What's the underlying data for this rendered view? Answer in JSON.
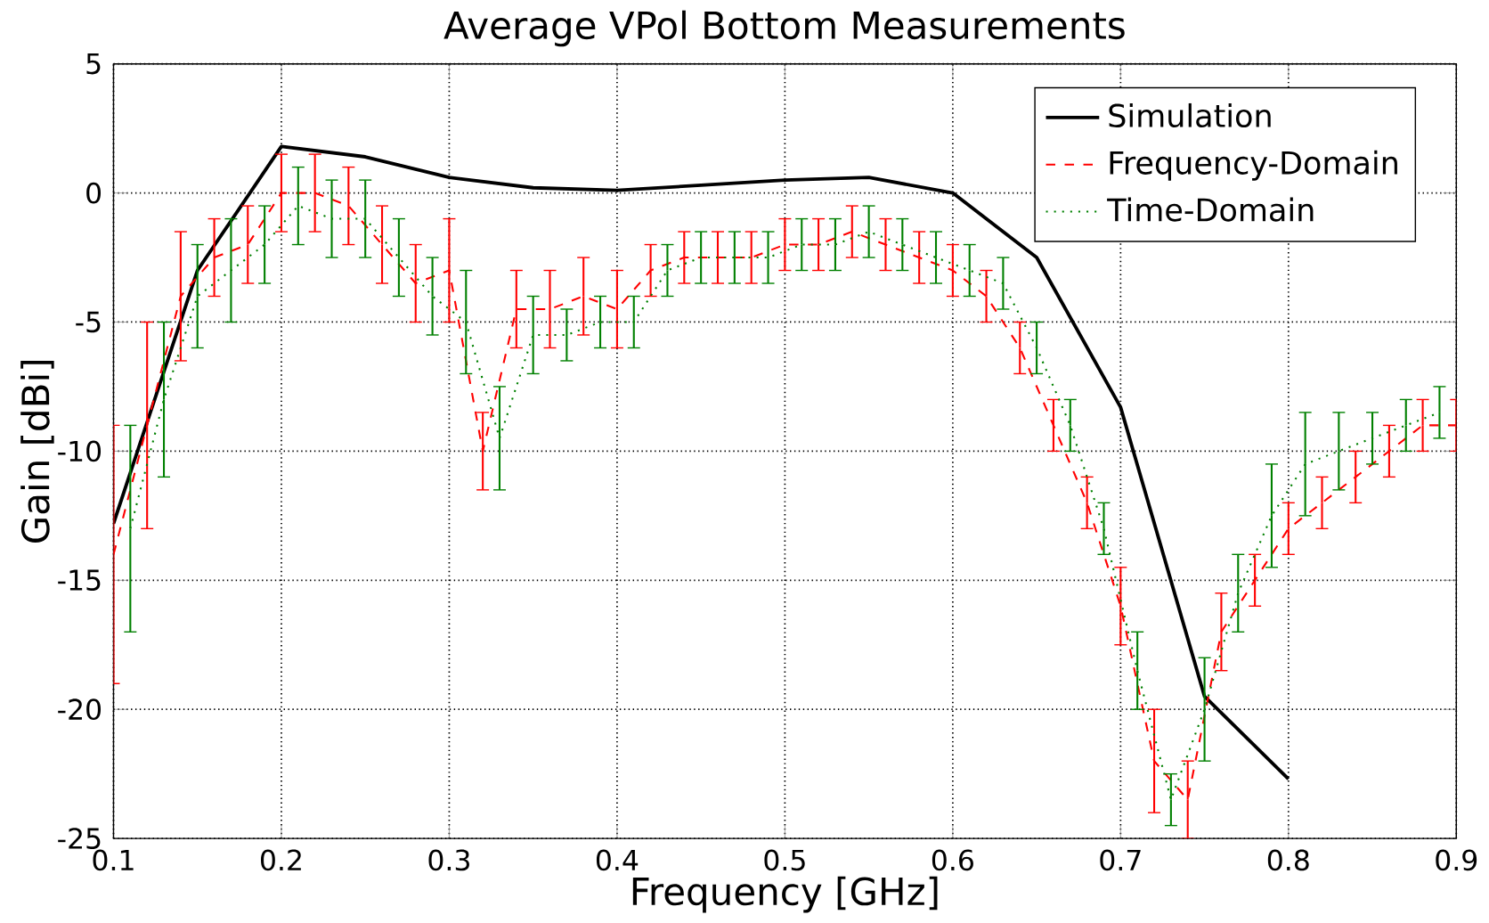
{
  "chart_data": {
    "type": "line",
    "title": "Average VPol Bottom Measurements",
    "xlabel": "Frequency [GHz]",
    "ylabel": "Gain [dBi]",
    "xlim": [
      0.1,
      0.9
    ],
    "ylim": [
      -25,
      5
    ],
    "xticks": [
      0.1,
      0.2,
      0.3,
      0.4,
      0.5,
      0.6,
      0.7,
      0.8,
      0.9
    ],
    "yticks": [
      -25,
      -20,
      -15,
      -10,
      -5,
      0,
      5
    ],
    "grid": true,
    "legend": "top right",
    "marker": "none",
    "series": [
      {
        "name": "Simulation",
        "color": "#000000",
        "line_style": "solid",
        "x": [
          0.1,
          0.15,
          0.2,
          0.25,
          0.3,
          0.35,
          0.4,
          0.45,
          0.5,
          0.55,
          0.6,
          0.65,
          0.7,
          0.75,
          0.8
        ],
        "values": [
          -12.8,
          -3,
          1.8,
          1.4,
          0.6,
          0.2,
          0.1,
          0.3,
          0.5,
          0.6,
          0,
          -2.5,
          -8.3,
          -19.5,
          -22.7
        ]
      },
      {
        "name": "Frequency-Domain",
        "color": "#ff0000",
        "line_style": "dashed",
        "x": [
          0.1,
          0.12,
          0.14,
          0.16,
          0.18,
          0.2,
          0.22,
          0.24,
          0.26,
          0.28,
          0.3,
          0.32,
          0.34,
          0.36,
          0.38,
          0.4,
          0.42,
          0.44,
          0.46,
          0.48,
          0.5,
          0.52,
          0.54,
          0.56,
          0.58,
          0.6,
          0.62,
          0.64,
          0.66,
          0.68,
          0.7,
          0.72,
          0.74,
          0.76,
          0.78,
          0.8,
          0.82,
          0.84,
          0.86,
          0.88,
          0.9
        ],
        "values": [
          -14,
          -9,
          -4,
          -2.5,
          -2,
          0,
          0,
          -0.5,
          -2,
          -3.5,
          -3,
          -10,
          -4.5,
          -4.5,
          -4,
          -4.5,
          -3,
          -2.5,
          -2.5,
          -2.5,
          -2,
          -2,
          -1.5,
          -2,
          -2.5,
          -3,
          -4,
          -6,
          -9,
          -12,
          -16,
          -22,
          -23.5,
          -17,
          -15,
          -13,
          -12,
          -11,
          -10,
          -9,
          -9
        ],
        "errors": [
          5,
          4,
          2.5,
          1.5,
          1.5,
          1.5,
          1.5,
          1.5,
          1.5,
          1.5,
          2,
          1.5,
          1.5,
          1.5,
          1.5,
          1.5,
          1,
          1,
          1,
          1,
          1,
          1,
          1,
          1,
          1,
          1,
          1,
          1,
          1,
          1,
          1.5,
          2,
          1.5,
          1.5,
          1,
          1,
          1,
          1,
          1,
          1,
          1
        ]
      },
      {
        "name": "Time-Domain",
        "color": "#008000",
        "line_style": "dotted",
        "x": [
          0.11,
          0.13,
          0.15,
          0.17,
          0.19,
          0.21,
          0.23,
          0.25,
          0.27,
          0.29,
          0.31,
          0.33,
          0.35,
          0.37,
          0.39,
          0.41,
          0.43,
          0.45,
          0.47,
          0.49,
          0.51,
          0.53,
          0.55,
          0.57,
          0.59,
          0.61,
          0.63,
          0.65,
          0.67,
          0.69,
          0.71,
          0.73,
          0.75,
          0.77,
          0.79,
          0.81,
          0.83,
          0.85,
          0.87,
          0.89
        ],
        "values": [
          -13,
          -8,
          -4,
          -3,
          -2,
          -0.5,
          -1,
          -1,
          -2.5,
          -4,
          -5,
          -9.5,
          -5.5,
          -5.5,
          -5,
          -5,
          -3,
          -2.5,
          -2.5,
          -2.5,
          -2,
          -2,
          -1.5,
          -2,
          -2.5,
          -3,
          -3.5,
          -6,
          -9,
          -13,
          -18.5,
          -23.5,
          -20,
          -15.5,
          -12.5,
          -10.5,
          -10,
          -9.5,
          -9,
          -8.5
        ],
        "errors": [
          4,
          3,
          2,
          2,
          1.5,
          1.5,
          1.5,
          1.5,
          1.5,
          1.5,
          2,
          2,
          1.5,
          1,
          1,
          1,
          1,
          1,
          1,
          1,
          1,
          1,
          1,
          1,
          1,
          1,
          1,
          1,
          1,
          1,
          1.5,
          1,
          2,
          1.5,
          2,
          2,
          1.5,
          1,
          1,
          1
        ]
      }
    ]
  }
}
